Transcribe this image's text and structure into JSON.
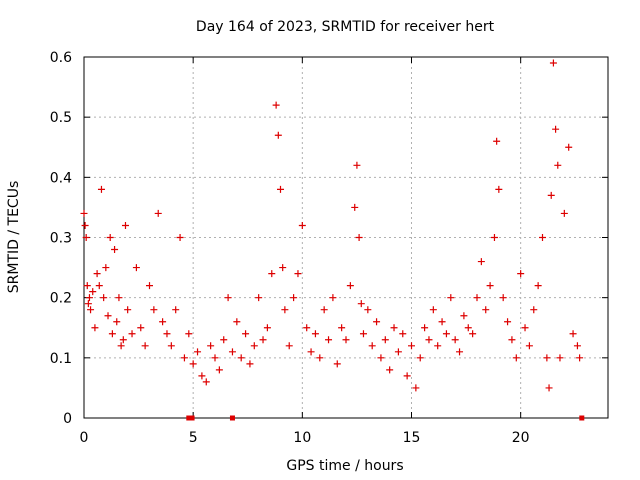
{
  "chart_data": {
    "type": "scatter",
    "title": "Day 164 of 2023, SRMTID for receiver hert",
    "xlabel": "GPS time / hours",
    "ylabel": "SRMTID / TECUs",
    "xlim": [
      0,
      24
    ],
    "ylim": [
      0,
      0.6
    ],
    "xticks": [
      "0",
      "5",
      "10",
      "15",
      "20"
    ],
    "yticks": [
      "0",
      "0.1",
      "0.2",
      "0.3",
      "0.4",
      "0.5",
      "0.6"
    ],
    "grid": true,
    "marker": "plus",
    "color": "#dd0000",
    "series": [
      {
        "name": "SRMTID",
        "x": [
          0.0,
          0.05,
          0.1,
          0.15,
          0.2,
          0.25,
          0.3,
          0.4,
          0.5,
          0.6,
          0.7,
          0.8,
          0.9,
          1.0,
          1.1,
          1.2,
          1.3,
          1.4,
          1.5,
          1.6,
          1.7,
          1.8,
          1.9,
          2.0,
          2.2,
          2.4,
          2.6,
          2.8,
          3.0,
          3.2,
          3.4,
          3.6,
          3.8,
          4.0,
          4.2,
          4.4,
          4.6,
          4.8,
          5.0,
          5.2,
          5.4,
          5.6,
          5.8,
          6.0,
          6.2,
          6.4,
          6.6,
          6.8,
          7.0,
          7.2,
          7.4,
          7.6,
          7.8,
          8.0,
          8.2,
          8.4,
          8.6,
          8.8,
          8.9,
          9.0,
          9.1,
          9.2,
          9.4,
          9.6,
          9.8,
          10.0,
          10.2,
          10.4,
          10.6,
          10.8,
          11.0,
          11.2,
          11.4,
          11.6,
          11.8,
          12.0,
          12.2,
          12.4,
          12.5,
          12.6,
          12.7,
          12.8,
          13.0,
          13.2,
          13.4,
          13.6,
          13.8,
          14.0,
          14.2,
          14.4,
          14.6,
          14.8,
          15.0,
          15.2,
          15.4,
          15.6,
          15.8,
          16.0,
          16.2,
          16.4,
          16.6,
          16.8,
          17.0,
          17.2,
          17.4,
          17.6,
          17.8,
          18.0,
          18.2,
          18.4,
          18.6,
          18.8,
          18.9,
          19.0,
          19.2,
          19.4,
          19.6,
          19.8,
          20.0,
          20.2,
          20.4,
          20.6,
          20.8,
          21.0,
          21.2,
          21.3,
          21.4,
          21.5,
          21.6,
          21.7,
          21.8,
          22.0,
          22.2,
          22.4,
          22.6,
          22.7
        ],
        "y": [
          0.34,
          0.32,
          0.3,
          0.22,
          0.19,
          0.2,
          0.18,
          0.21,
          0.15,
          0.24,
          0.22,
          0.38,
          0.2,
          0.25,
          0.17,
          0.3,
          0.14,
          0.28,
          0.16,
          0.2,
          0.12,
          0.13,
          0.32,
          0.18,
          0.14,
          0.25,
          0.15,
          0.12,
          0.22,
          0.18,
          0.34,
          0.16,
          0.14,
          0.12,
          0.18,
          0.3,
          0.1,
          0.14,
          0.09,
          0.11,
          0.07,
          0.06,
          0.12,
          0.1,
          0.08,
          0.13,
          0.2,
          0.11,
          0.16,
          0.1,
          0.14,
          0.09,
          0.12,
          0.2,
          0.13,
          0.15,
          0.24,
          0.52,
          0.47,
          0.38,
          0.25,
          0.18,
          0.12,
          0.2,
          0.24,
          0.32,
          0.15,
          0.11,
          0.14,
          0.1,
          0.18,
          0.13,
          0.2,
          0.09,
          0.15,
          0.13,
          0.22,
          0.35,
          0.42,
          0.3,
          0.19,
          0.14,
          0.18,
          0.12,
          0.16,
          0.1,
          0.13,
          0.08,
          0.15,
          0.11,
          0.14,
          0.07,
          0.12,
          0.05,
          0.1,
          0.15,
          0.13,
          0.18,
          0.12,
          0.16,
          0.14,
          0.2,
          0.13,
          0.11,
          0.17,
          0.15,
          0.14,
          0.2,
          0.26,
          0.18,
          0.22,
          0.3,
          0.46,
          0.38,
          0.2,
          0.16,
          0.13,
          0.1,
          0.24,
          0.15,
          0.12,
          0.18,
          0.22,
          0.3,
          0.1,
          0.05,
          0.37,
          0.59,
          0.48,
          0.42,
          0.1,
          0.34,
          0.45,
          0.14,
          0.12,
          0.1
        ]
      }
    ],
    "zero_markers_x": [
      4.8,
      4.95,
      6.8,
      22.8
    ]
  }
}
